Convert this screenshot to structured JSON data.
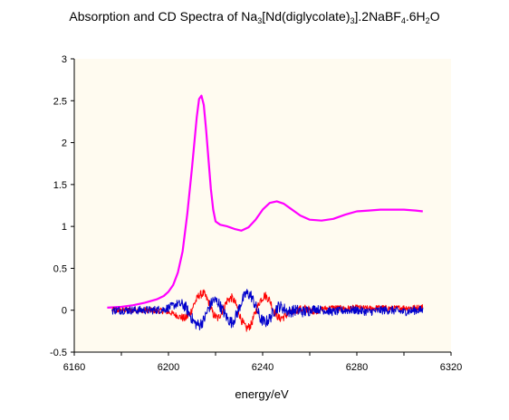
{
  "chart_data": {
    "type": "line",
    "title": {
      "prefix": "Absorption and CD Spectra of Na",
      "parts": [
        {
          "text": "3",
          "sub": true
        },
        {
          "text": "[Nd(diglycolate)",
          "sub": false
        },
        {
          "text": "3",
          "sub": true
        },
        {
          "text": "].2NaBF",
          "sub": false
        },
        {
          "text": "4",
          "sub": true
        },
        {
          "text": ".6H",
          "sub": false
        },
        {
          "text": "2",
          "sub": true
        },
        {
          "text": "O",
          "sub": false
        }
      ]
    },
    "xlabel": "energy/eV",
    "ylabel": "",
    "xlim": [
      6160,
      6320
    ],
    "ylim": [
      -0.5,
      3
    ],
    "xticks": [
      6160,
      6200,
      6240,
      6280,
      6320
    ],
    "yticks": [
      -0.5,
      0,
      0.5,
      1,
      1.5,
      2,
      2.5,
      3
    ],
    "ytick_labels": [
      "-0.5",
      "0",
      "0.5",
      "1",
      "1.5",
      "2",
      "2.5",
      "3"
    ],
    "plot_background": "#fffbf0",
    "grid": false,
    "legend": "none",
    "series": [
      {
        "color": "#ff00ff",
        "x": [
          6174,
          6180,
          6185,
          6190,
          6195,
          6198,
          6200,
          6202,
          6204,
          6206,
          6208,
          6210,
          6212,
          6213,
          6214,
          6215,
          6216,
          6217,
          6218,
          6219,
          6220,
          6222,
          6225,
          6228,
          6231,
          6234,
          6237,
          6240,
          6243,
          6246,
          6249,
          6252,
          6256,
          6260,
          6265,
          6270,
          6275,
          6280,
          6285,
          6290,
          6295,
          6300,
          6305,
          6308
        ],
        "y": [
          0.03,
          0.04,
          0.06,
          0.09,
          0.13,
          0.17,
          0.22,
          0.3,
          0.45,
          0.7,
          1.15,
          1.7,
          2.3,
          2.52,
          2.56,
          2.45,
          2.15,
          1.8,
          1.45,
          1.2,
          1.06,
          1.02,
          1.0,
          0.97,
          0.95,
          0.99,
          1.08,
          1.2,
          1.28,
          1.3,
          1.27,
          1.21,
          1.13,
          1.08,
          1.07,
          1.09,
          1.14,
          1.18,
          1.19,
          1.2,
          1.2,
          1.2,
          1.19,
          1.18
        ]
      },
      {
        "color": "#ff0000",
        "x": [
          6176,
          6185,
          6192,
          6198,
          6201,
          6204,
          6207,
          6209,
          6211,
          6213,
          6215,
          6217,
          6219,
          6221,
          6223,
          6225,
          6227,
          6229,
          6231,
          6233,
          6235,
          6237,
          6239,
          6241,
          6243,
          6245,
          6247,
          6249,
          6251,
          6254,
          6258,
          6262,
          6266,
          6270,
          6275,
          6280,
          6285,
          6290,
          6295,
          6300,
          6305,
          6308
        ],
        "y": [
          0.0,
          0.0,
          0.0,
          -0.01,
          -0.03,
          -0.07,
          -0.1,
          -0.05,
          0.08,
          0.18,
          0.2,
          0.1,
          -0.05,
          -0.1,
          0.0,
          0.12,
          0.15,
          0.05,
          -0.12,
          -0.22,
          -0.18,
          -0.02,
          0.12,
          0.18,
          0.12,
          -0.02,
          -0.1,
          -0.08,
          -0.04,
          0.0,
          0.02,
          -0.02,
          0.02,
          0.03,
          0.02,
          0.03,
          0.02,
          0.03,
          0.02,
          0.03,
          0.03,
          0.04
        ],
        "noise": 0.035
      },
      {
        "color": "#0000cc",
        "x": [
          6176,
          6185,
          6192,
          6198,
          6201,
          6204,
          6207,
          6209,
          6211,
          6213,
          6215,
          6217,
          6219,
          6221,
          6223,
          6225,
          6227,
          6229,
          6231,
          6233,
          6235,
          6237,
          6239,
          6241,
          6243,
          6245,
          6247,
          6249,
          6251,
          6254,
          6258,
          6262,
          6266,
          6270,
          6275,
          6280,
          6285,
          6290,
          6295,
          6300,
          6305,
          6308
        ],
        "y": [
          0.0,
          0.0,
          0.0,
          0.01,
          0.04,
          0.08,
          0.05,
          -0.05,
          -0.15,
          -0.18,
          -0.12,
          0.02,
          0.12,
          0.1,
          0.0,
          -0.1,
          -0.15,
          -0.05,
          0.1,
          0.2,
          0.18,
          0.05,
          -0.1,
          -0.15,
          -0.1,
          0.0,
          0.05,
          0.02,
          -0.02,
          0.0,
          -0.02,
          0.02,
          0.0,
          -0.02,
          0.0,
          0.0,
          -0.02,
          0.0,
          0.0,
          -0.02,
          0.0,
          0.0
        ],
        "noise": 0.05
      }
    ]
  }
}
